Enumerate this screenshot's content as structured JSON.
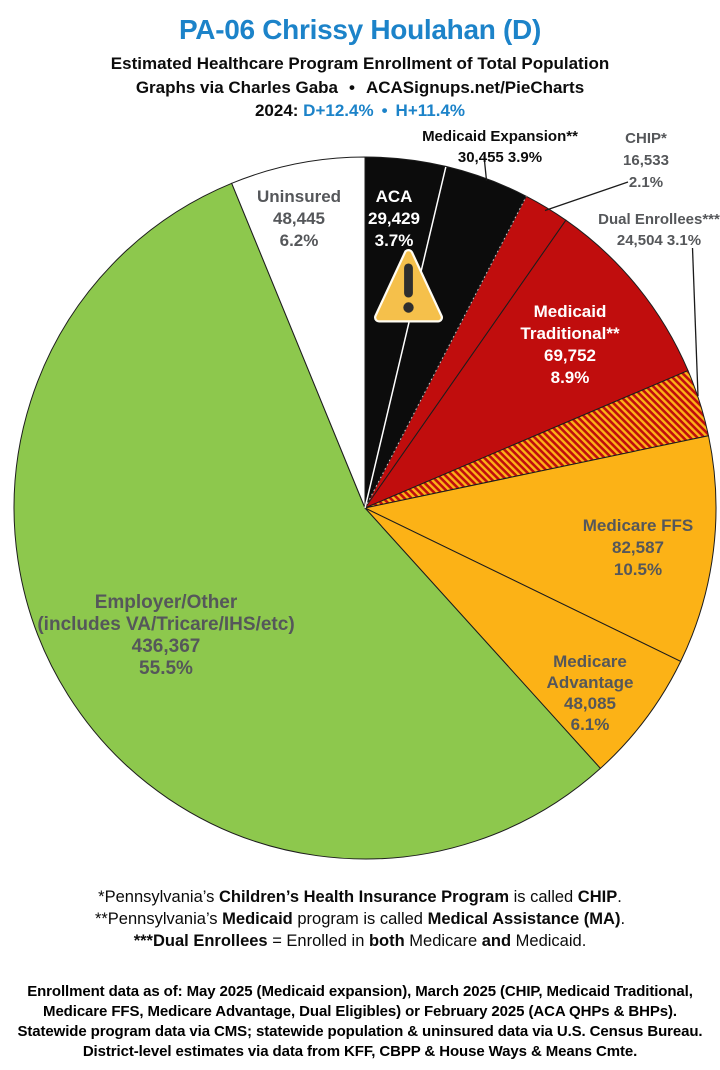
{
  "header": {
    "title": "PA-06 Chrissy Houlahan (D)",
    "subtitle": "Estimated Healthcare Program Enrollment of Total Population",
    "credit_left": "Graphs via Charles Gaba",
    "credit_sep": "•",
    "credit_right": "ACASignups.net/PieCharts",
    "year_prefix": "2024:",
    "lean_d": "D+12.4%",
    "lean_sep": "•",
    "lean_h": "H+11.4%"
  },
  "palette": {
    "accent_blue": "#1c83c9",
    "label_gray": "#55575a",
    "wedge_black": "#0c0c0c",
    "wedge_red": "#c00d0d",
    "wedge_gold": "#fcb216",
    "wedge_green": "#8dc84d",
    "wedge_white": "#ffffff"
  },
  "chart_data": {
    "type": "pie",
    "title": "PA-06 Chrissy Houlahan (D)",
    "subtitle": "Estimated Healthcare Program Enrollment of Total Population",
    "units": "people",
    "start_at": "12-o-clock",
    "direction": "clockwise",
    "slices": [
      {
        "id": "aca",
        "label": "ACA",
        "value": 29429,
        "value_text": "29,429",
        "pct": 3.7,
        "pct_text": "3.7%",
        "fill": "#0c0c0c"
      },
      {
        "id": "medicaid-expansion",
        "label": "Medicaid Expansion**",
        "value": 30455,
        "value_text": "30,455",
        "pct": 3.9,
        "pct_text": "3.9%",
        "fill": "#0c0c0c"
      },
      {
        "id": "chip",
        "label": "CHIP*",
        "value": 16533,
        "value_text": "16,533",
        "pct": 2.1,
        "pct_text": "2.1%",
        "fill": "#c00d0d"
      },
      {
        "id": "medicaid-traditional",
        "label": "Medicaid Traditional**",
        "value": 69752,
        "value_text": "69,752",
        "pct": 8.9,
        "pct_text": "8.9%",
        "fill": "#c00d0d"
      },
      {
        "id": "dual-enrollees",
        "label": "Dual Enrollees***",
        "value": 24504,
        "value_text": "24,504",
        "pct": 3.1,
        "pct_text": "3.1%",
        "fill": "hatch-red-gold"
      },
      {
        "id": "medicare-ffs",
        "label": "Medicare FFS",
        "value": 82587,
        "value_text": "82,587",
        "pct": 10.5,
        "pct_text": "10.5%",
        "fill": "#fcb216"
      },
      {
        "id": "medicare-advantage",
        "label": "Medicare Advantage",
        "value": 48085,
        "value_text": "48,085",
        "pct": 6.1,
        "pct_text": "6.1%",
        "fill": "#fcb216"
      },
      {
        "id": "employer-other",
        "label": "Employer/Other (includes VA/Tricare/IHS/etc)",
        "value": 436367,
        "value_text": "436,367",
        "pct": 55.5,
        "pct_text": "55.5%",
        "fill": "#8dc84d"
      },
      {
        "id": "uninsured",
        "label": "Uninsured",
        "value": 48445,
        "value_text": "48,445",
        "pct": 6.2,
        "pct_text": "6.2%",
        "fill": "#ffffff"
      }
    ],
    "annotations": [
      "warning-triangle on ACA wedge"
    ]
  },
  "labels": {
    "medicaid_expansion": {
      "lines": [
        "Medicaid Expansion**",
        "30,455 3.9%"
      ]
    },
    "chip": {
      "lines": [
        "CHIP*",
        "16,533",
        "2.1%"
      ]
    },
    "dual_enrollees": {
      "lines": [
        "Dual Enrollees***",
        "24,504 3.1%"
      ]
    },
    "uninsured": {
      "lines": [
        "Uninsured",
        "48,445",
        "6.2%"
      ]
    },
    "aca": {
      "lines": [
        "ACA",
        "29,429",
        "3.7%"
      ]
    },
    "medicaid_traditional": {
      "lines": [
        "Medicaid",
        "Traditional**",
        "69,752",
        "8.9%"
      ]
    },
    "medicare_ffs": {
      "lines": [
        "Medicare FFS",
        "82,587",
        "10.5%"
      ]
    },
    "medicare_advantage": {
      "lines": [
        "Medicare",
        "Advantage",
        "48,085",
        "6.1%"
      ]
    },
    "employer_other": {
      "lines": [
        "Employer/Other",
        "(includes VA/Tricare/IHS/etc)",
        "436,367",
        "55.5%"
      ]
    }
  },
  "footnotes": [
    [
      {
        "t": "*Pennsylvania’s ",
        "b": false
      },
      {
        "t": "Children’s Health Insurance Program",
        "b": true
      },
      {
        "t": " is called ",
        "b": false
      },
      {
        "t": "CHIP",
        "b": true
      },
      {
        "t": ".",
        "b": false
      }
    ],
    [
      {
        "t": "**Pennsylvania’s ",
        "b": false
      },
      {
        "t": "Medicaid",
        "b": true
      },
      {
        "t": " program is called ",
        "b": false
      },
      {
        "t": "Medical Assistance (MA)",
        "b": true
      },
      {
        "t": ".",
        "b": false
      }
    ],
    [
      {
        "t": "***Dual Enrollees",
        "b": true
      },
      {
        "t": " = Enrolled in ",
        "b": false
      },
      {
        "t": "both",
        "b": true
      },
      {
        "t": " Medicare ",
        "b": false
      },
      {
        "t": "and",
        "b": true
      },
      {
        "t": " Medicaid.",
        "b": false
      }
    ]
  ],
  "source_lines": [
    "Enrollment data as of: May 2025 (Medicaid expansion), March 2025 (CHIP, Medicaid Traditional,",
    "Medicare FFS, Medicare Advantage, Dual Eligibles) or February 2025 (ACA QHPs & BHPs).",
    "Statewide program data via CMS; statewide population & uninsured data via U.S. Census Bureau.",
    "District-level estimates via data from KFF, CBPP & House Ways & Means Cmte."
  ]
}
